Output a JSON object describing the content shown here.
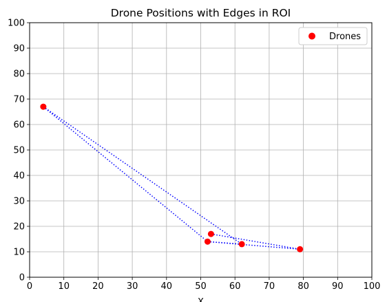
{
  "chart_data": {
    "type": "scatter",
    "title": "Drone Positions with Edges in ROI",
    "xlabel": "X",
    "ylabel": "",
    "xlim": [
      0,
      100
    ],
    "ylim": [
      0,
      100
    ],
    "xticks": [
      0,
      10,
      20,
      30,
      40,
      50,
      60,
      70,
      80,
      90,
      100
    ],
    "yticks": [
      0,
      10,
      20,
      30,
      40,
      50,
      60,
      70,
      80,
      90,
      100
    ],
    "grid": true,
    "legend": {
      "position": "top-right",
      "entries": [
        "Drones"
      ]
    },
    "series": [
      {
        "name": "Drones",
        "color": "#ff0000",
        "points": [
          {
            "x": 4,
            "y": 67
          },
          {
            "x": 53,
            "y": 17
          },
          {
            "x": 52,
            "y": 14
          },
          {
            "x": 62,
            "y": 13
          },
          {
            "x": 79,
            "y": 11
          }
        ]
      }
    ],
    "edges": {
      "style": "dotted",
      "color": "#0000ff",
      "pairs": [
        [
          [
            4,
            67
          ],
          [
            62,
            13
          ]
        ],
        [
          [
            4,
            67
          ],
          [
            52,
            14
          ]
        ],
        [
          [
            53,
            17
          ],
          [
            79,
            11
          ]
        ],
        [
          [
            52,
            14
          ],
          [
            62,
            13
          ]
        ],
        [
          [
            52,
            14
          ],
          [
            79,
            11
          ]
        ]
      ]
    }
  }
}
